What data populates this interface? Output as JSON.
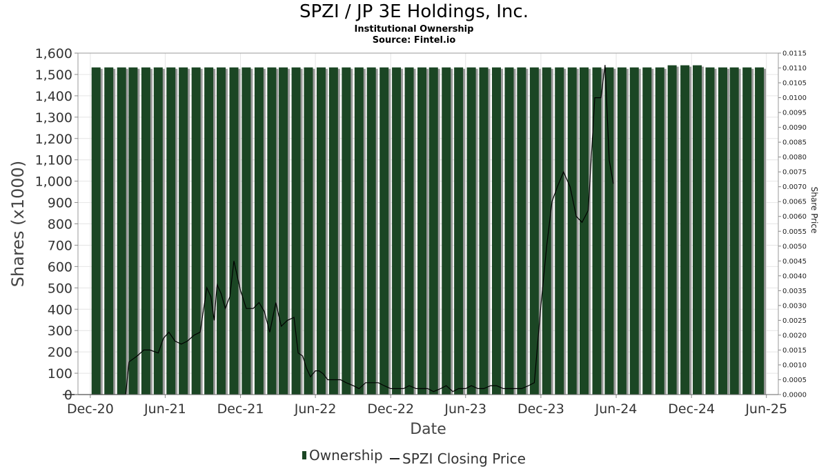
{
  "title": "SPZI / JP 3E Holdings, Inc.",
  "subtitle": "Institutional Ownership",
  "source": "Source: Fintel.io",
  "legend": {
    "ownership": "Ownership",
    "price": "SPZI Closing Price"
  },
  "colors": {
    "bar": "#1b4624",
    "bar_shadow": "#9a9a9a",
    "price_line": "#000000",
    "grid": "#e4e4e4"
  },
  "chart_data": {
    "type": "bar",
    "xlabel": "Date",
    "ylabel": "Shares (x1000)",
    "y2label": "Share Price",
    "ylim": [
      0,
      1600
    ],
    "y2lim": [
      0,
      0.0115
    ],
    "x_range": [
      "2020-11-01",
      "2025-06-30"
    ],
    "x_ticks": [
      {
        "date": "2020-12-01",
        "label": "Dec-20"
      },
      {
        "date": "2021-06-01",
        "label": "Jun-21"
      },
      {
        "date": "2021-12-01",
        "label": "Dec-21"
      },
      {
        "date": "2022-06-01",
        "label": "Jun-22"
      },
      {
        "date": "2022-12-01",
        "label": "Dec-22"
      },
      {
        "date": "2023-06-01",
        "label": "Jun-23"
      },
      {
        "date": "2023-12-01",
        "label": "Dec-23"
      },
      {
        "date": "2024-06-01",
        "label": "Jun-24"
      },
      {
        "date": "2024-12-01",
        "label": "Dec-24"
      },
      {
        "date": "2025-06-01",
        "label": "Jun-25"
      }
    ],
    "y_ticks": [
      "0",
      "100",
      "200",
      "300",
      "400",
      "500",
      "600",
      "700",
      "800",
      "900",
      "1,000",
      "1,100",
      "1,200",
      "1,300",
      "1,400",
      "1,500",
      "1,600"
    ],
    "y2_ticks": [
      "0.0000",
      "0.0005",
      "0.0010",
      "0.0015",
      "0.0020",
      "0.0025",
      "0.0030",
      "0.0035",
      "0.0040",
      "0.0045",
      "0.0050",
      "0.0055",
      "0.0060",
      "0.0065",
      "0.0070",
      "0.0075",
      "0.0080",
      "0.0085",
      "0.0090",
      "0.0095",
      "0.0100",
      "0.0105",
      "0.0110",
      "0.0115"
    ],
    "grid": true,
    "legend_position": "bottom",
    "series": [
      {
        "name": "Ownership",
        "type": "bar",
        "x": [
          "2020-12-15",
          "2021-01-15",
          "2021-02-15",
          "2021-03-15",
          "2021-04-15",
          "2021-05-15",
          "2021-06-15",
          "2021-07-15",
          "2021-08-15",
          "2021-09-15",
          "2021-10-15",
          "2021-11-15",
          "2021-12-15",
          "2022-01-15",
          "2022-02-15",
          "2022-03-15",
          "2022-04-15",
          "2022-05-15",
          "2022-06-15",
          "2022-07-15",
          "2022-08-15",
          "2022-09-15",
          "2022-10-15",
          "2022-11-15",
          "2022-12-15",
          "2023-01-15",
          "2023-02-15",
          "2023-03-15",
          "2023-04-15",
          "2023-05-15",
          "2023-06-15",
          "2023-07-15",
          "2023-08-15",
          "2023-09-15",
          "2023-10-15",
          "2023-11-15",
          "2023-12-15",
          "2024-01-15",
          "2024-02-15",
          "2024-03-15",
          "2024-04-15",
          "2024-05-15",
          "2024-06-15",
          "2024-07-15",
          "2024-08-15",
          "2024-09-15",
          "2024-10-15",
          "2024-11-15",
          "2024-12-15",
          "2025-01-15",
          "2025-02-15",
          "2025-03-15",
          "2025-04-15",
          "2025-05-15"
        ],
        "values": [
          1533,
          1533,
          1533,
          1533,
          1533,
          1533,
          1533,
          1533,
          1533,
          1533,
          1533,
          1533,
          1533,
          1533,
          1533,
          1533,
          1533,
          1533,
          1533,
          1533,
          1533,
          1533,
          1533,
          1533,
          1533,
          1533,
          1533,
          1533,
          1533,
          1533,
          1533,
          1533,
          1533,
          1533,
          1533,
          1533,
          1533,
          1533,
          1533,
          1533,
          1533,
          1533,
          1533,
          1533,
          1533,
          1533,
          1543,
          1543,
          1543,
          1533,
          1533,
          1533,
          1533,
          1533
        ]
      },
      {
        "name": "SPZI Closing Price",
        "type": "line",
        "x": [
          "2021-02-25",
          "2021-03-05",
          "2021-03-25",
          "2021-04-10",
          "2021-04-25",
          "2021-05-15",
          "2021-05-28",
          "2021-06-10",
          "2021-06-25",
          "2021-07-10",
          "2021-07-25",
          "2021-08-10",
          "2021-08-25",
          "2021-09-10",
          "2021-09-20",
          "2021-09-28",
          "2021-10-05",
          "2021-10-15",
          "2021-10-25",
          "2021-11-05",
          "2021-11-15",
          "2021-12-01",
          "2021-12-15",
          "2022-01-01",
          "2022-01-15",
          "2022-01-28",
          "2022-02-10",
          "2022-02-25",
          "2022-03-10",
          "2022-03-25",
          "2022-04-10",
          "2022-04-20",
          "2022-05-01",
          "2022-05-10",
          "2022-05-20",
          "2022-06-01",
          "2022-06-10",
          "2022-06-20",
          "2022-07-01",
          "2022-07-15",
          "2022-08-01",
          "2022-08-15",
          "2022-09-01",
          "2022-09-15",
          "2022-10-01",
          "2022-10-15",
          "2022-11-01",
          "2022-11-15",
          "2022-12-01",
          "2022-12-15",
          "2023-01-01",
          "2023-01-15",
          "2023-02-01",
          "2023-02-15",
          "2023-03-01",
          "2023-03-15",
          "2023-04-01",
          "2023-04-15",
          "2023-05-01",
          "2023-05-15",
          "2023-06-01",
          "2023-06-15",
          "2023-07-01",
          "2023-07-15",
          "2023-08-01",
          "2023-08-15",
          "2023-09-01",
          "2023-09-15",
          "2023-10-01",
          "2023-10-15",
          "2023-11-01",
          "2023-11-15",
          "2023-12-01",
          "2023-12-15",
          "2023-12-28",
          "2024-01-10",
          "2024-01-25",
          "2024-02-10",
          "2024-02-25",
          "2024-03-10",
          "2024-03-25",
          "2024-04-10",
          "2024-04-25",
          "2024-05-05",
          "2024-05-15",
          "2024-05-25"
        ],
        "values": [
          0.0,
          0.0011,
          0.0013,
          0.0015,
          0.0015,
          0.0014,
          0.0019,
          0.0021,
          0.0018,
          0.0017,
          0.0018,
          0.002,
          0.0021,
          0.0036,
          0.0033,
          0.0025,
          0.0037,
          0.0034,
          0.0029,
          0.0033,
          0.0045,
          0.0035,
          0.0029,
          0.0029,
          0.0031,
          0.0028,
          0.0021,
          0.0031,
          0.0023,
          0.0025,
          0.0026,
          0.0014,
          0.0013,
          0.0009,
          0.0006,
          0.0008,
          0.0008,
          0.0007,
          0.0005,
          0.0005,
          0.0005,
          0.0004,
          0.0003,
          0.0002,
          0.0004,
          0.0004,
          0.0004,
          0.0003,
          0.0002,
          0.0002,
          0.0002,
          0.0003,
          0.0002,
          0.0002,
          0.0002,
          0.0001,
          0.0002,
          0.0003,
          0.0001,
          0.0002,
          0.0002,
          0.0003,
          0.0002,
          0.0002,
          0.0003,
          0.0003,
          0.0002,
          0.0002,
          0.0002,
          0.0002,
          0.0003,
          0.0004,
          0.003,
          0.005,
          0.0065,
          0.007,
          0.0075,
          0.007,
          0.006,
          0.0058,
          0.0062,
          0.01,
          0.01,
          0.0111,
          0.0079,
          0.0071
        ]
      }
    ]
  }
}
